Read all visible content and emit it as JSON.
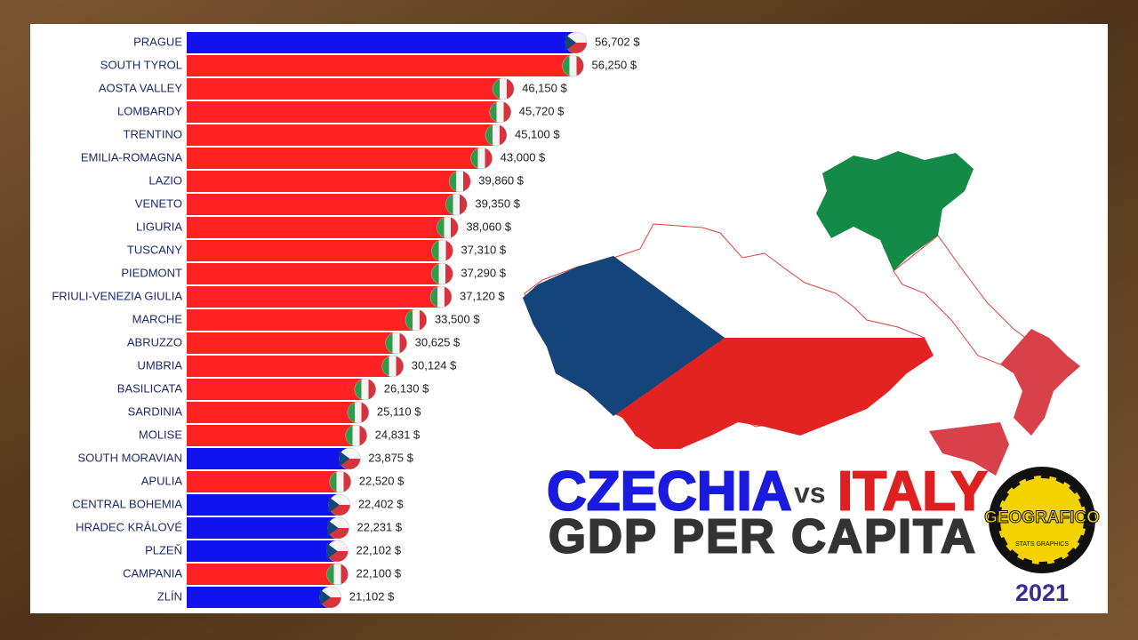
{
  "chart_data": {
    "type": "bar",
    "orientation": "horizontal",
    "categories": [
      "PRAGUE",
      "SOUTH TYROL",
      "AOSTA VALLEY",
      "LOMBARDY",
      "TRENTINO",
      "EMILIA-ROMAGNA",
      "LAZIO",
      "VENETO",
      "LIGURIA",
      "TUSCANY",
      "PIEDMONT",
      "FRIULI-VENEZIA GIULIA",
      "MARCHE",
      "ABRUZZO",
      "UMBRIA",
      "BASILICATA",
      "SARDINIA",
      "MOLISE",
      "SOUTH MORAVIAN",
      "APULIA",
      "CENTRAL BOHEMIA",
      "HRADEC KRÁLOVÉ",
      "PLZEŇ",
      "CAMPANIA",
      "ZLÍN"
    ],
    "values": [
      56702,
      56250,
      46150,
      45720,
      45100,
      43000,
      39860,
      39350,
      38060,
      37310,
      37290,
      37120,
      33500,
      30625,
      30124,
      26130,
      25110,
      24831,
      23875,
      22520,
      22402,
      22231,
      22102,
      22100,
      21102
    ],
    "value_labels": [
      "56,702 $",
      "56,250 $",
      "46,150 $",
      "45,720 $",
      "45,100 $",
      "43,000 $",
      "39,860 $",
      "39,350 $",
      "38,060 $",
      "37,310 $",
      "37,290 $",
      "37,120 $",
      "33,500 $",
      "30,625 $",
      "30,124 $",
      "26,130 $",
      "25,110 $",
      "24,831 $",
      "23,875 $",
      "22,520 $",
      "22,402 $",
      "22,231 $",
      "22,102 $",
      "22,100 $",
      "21,102 $"
    ],
    "colors": [
      "#1212ee",
      "#ff2222",
      "#ff2222",
      "#ff2222",
      "#ff2222",
      "#ff2222",
      "#ff2222",
      "#ff2222",
      "#ff2222",
      "#ff2222",
      "#ff2222",
      "#ff2222",
      "#ff2222",
      "#ff2222",
      "#ff2222",
      "#ff2222",
      "#ff2222",
      "#ff2222",
      "#1212ee",
      "#ff2222",
      "#1212ee",
      "#1212ee",
      "#1212ee",
      "#ff2222",
      "#1212ee"
    ],
    "title": {
      "left": "CZECHIA",
      "joiner": "vs",
      "right": "ITALY",
      "subtitle": "GDP PER CAPITA"
    },
    "logo": {
      "name": "GEOGRAFICO",
      "tagline": "STATS GRAPHICS"
    },
    "year": "2021"
  }
}
